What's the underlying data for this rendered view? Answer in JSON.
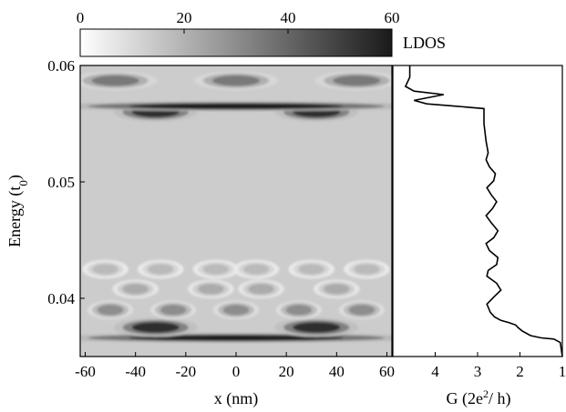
{
  "chart_data": [
    {
      "type": "heatmap",
      "title": "",
      "xlabel": "x (nm)",
      "ylabel": "Energy (t₀)",
      "xlim": [
        -62,
        62
      ],
      "ylim": [
        0.035,
        0.06
      ],
      "xticks": [
        -60,
        -40,
        -20,
        0,
        20,
        40,
        60
      ],
      "yticks": [
        0.04,
        0.05,
        0.06
      ],
      "colorbar": {
        "label": "LDOS",
        "range": [
          0,
          60
        ],
        "ticks": [
          0,
          20,
          40,
          60
        ],
        "colormap": [
          "#ffffff",
          "#1a1a1a"
        ],
        "placement": "top"
      },
      "features": [
        {
          "energy": 0.0366,
          "x_centers": [
            0
          ],
          "intensity": 60,
          "extent": "full width"
        },
        {
          "energy": 0.0375,
          "x_centers": [
            -32,
            32
          ],
          "intensity": 55
        },
        {
          "energy": 0.039,
          "x_centers": [
            -50,
            -25,
            0,
            25,
            50
          ],
          "intensity": 30
        },
        {
          "energy": 0.0408,
          "x_centers": [
            -40,
            -10,
            10,
            40
          ],
          "intensity": 22
        },
        {
          "energy": 0.0425,
          "x_centers": [
            -52,
            -30,
            -8,
            8,
            30,
            52
          ],
          "intensity": 18
        },
        {
          "energy": 0.056,
          "x_centers": [
            -32,
            32
          ],
          "intensity": 55
        },
        {
          "energy": 0.0565,
          "x_centers": [
            0
          ],
          "intensity": 60,
          "extent": "full width"
        },
        {
          "energy": 0.0587,
          "x_centers": [
            -48,
            0,
            48
          ],
          "intensity": 35
        }
      ]
    },
    {
      "type": "line",
      "title": "",
      "xlabel": "G (2e²/ h)",
      "ylabel": "",
      "xlim": [
        5,
        1
      ],
      "ylim": [
        0.035,
        0.06
      ],
      "xticks": [
        4,
        3,
        2,
        1
      ],
      "series": [
        {
          "x": [
            1.0,
            1.05,
            1.2,
            1.5,
            1.75,
            1.95,
            2.05,
            2.1,
            2.25,
            2.45,
            2.6,
            2.7,
            2.78,
            2.62,
            2.45,
            2.55,
            2.78,
            2.75,
            2.55,
            2.52,
            2.72,
            2.8,
            2.62,
            2.52,
            2.68,
            2.8,
            2.65,
            2.55,
            2.68,
            2.78,
            2.62,
            2.58,
            2.72,
            2.8,
            2.75,
            2.8,
            2.85,
            2.85,
            3.5,
            4.2,
            4.5,
            3.8,
            4.5,
            4.7,
            4.6,
            4.6
          ],
          "y": [
            0.035,
            0.0362,
            0.0365,
            0.0366,
            0.0368,
            0.0372,
            0.0375,
            0.0377,
            0.0379,
            0.0381,
            0.0384,
            0.0388,
            0.0395,
            0.0401,
            0.0407,
            0.0413,
            0.0419,
            0.0424,
            0.0429,
            0.0435,
            0.0441,
            0.0447,
            0.0452,
            0.0458,
            0.0465,
            0.0471,
            0.0477,
            0.0483,
            0.0489,
            0.0495,
            0.0501,
            0.0507,
            0.0513,
            0.0519,
            0.0525,
            0.0535,
            0.055,
            0.0563,
            0.0565,
            0.0567,
            0.057,
            0.0575,
            0.0578,
            0.0582,
            0.059,
            0.06
          ]
        }
      ]
    }
  ]
}
